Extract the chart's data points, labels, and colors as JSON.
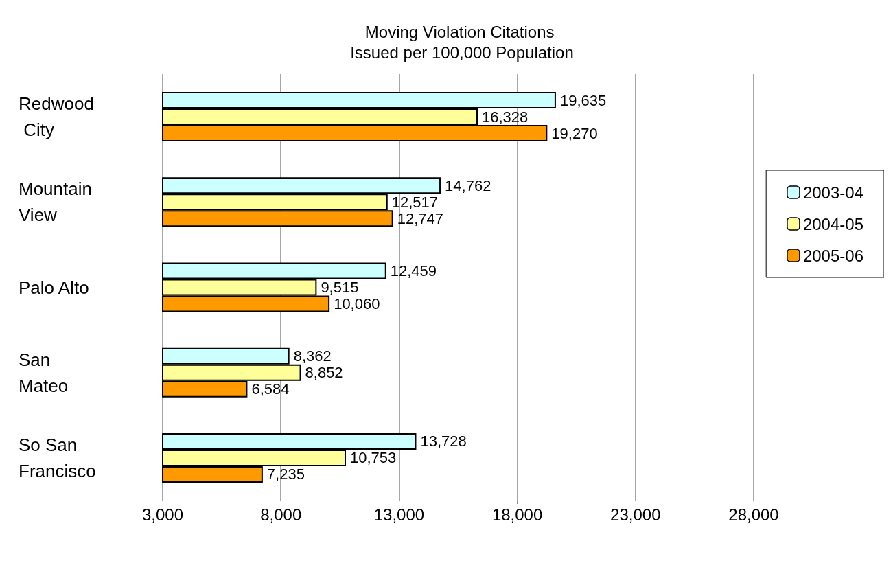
{
  "chart_data": {
    "type": "bar",
    "orientation": "horizontal",
    "title": "Moving Violation Citations Issued per 100,000 Population",
    "categories": [
      "Redwood City",
      "Mountain View",
      "Palo Alto",
      "San Mateo",
      "So San Francisco"
    ],
    "series": [
      {
        "name": "2003-04",
        "color": "#ccffff",
        "values": [
          19635,
          14762,
          12459,
          8362,
          13728
        ],
        "value_labels": [
          "19,635",
          "14,762",
          "12,459",
          "8,362",
          "13,728"
        ]
      },
      {
        "name": "2004-05",
        "color": "#ffff99",
        "values": [
          16328,
          12517,
          9515,
          8852,
          10753
        ],
        "value_labels": [
          "16,328",
          "12,517",
          "9,515",
          "8,852",
          "10,753"
        ]
      },
      {
        "name": "2005-06",
        "color": "#ff9900",
        "values": [
          19270,
          12747,
          10060,
          6584,
          7235
        ],
        "value_labels": [
          "19,270",
          "12,747",
          "10,060",
          "6,584",
          "7,235"
        ]
      }
    ],
    "xlim": [
      3000,
      28000
    ],
    "xticks": [
      {
        "value": 3000,
        "label": "3,000"
      },
      {
        "value": 8000,
        "label": "8,000"
      },
      {
        "value": 13000,
        "label": "13,000"
      },
      {
        "value": 18000,
        "label": "18,000"
      },
      {
        "value": 23000,
        "label": "23,000"
      },
      {
        "value": 28000,
        "label": "28,000"
      }
    ],
    "grid": "x",
    "legend": "right"
  }
}
